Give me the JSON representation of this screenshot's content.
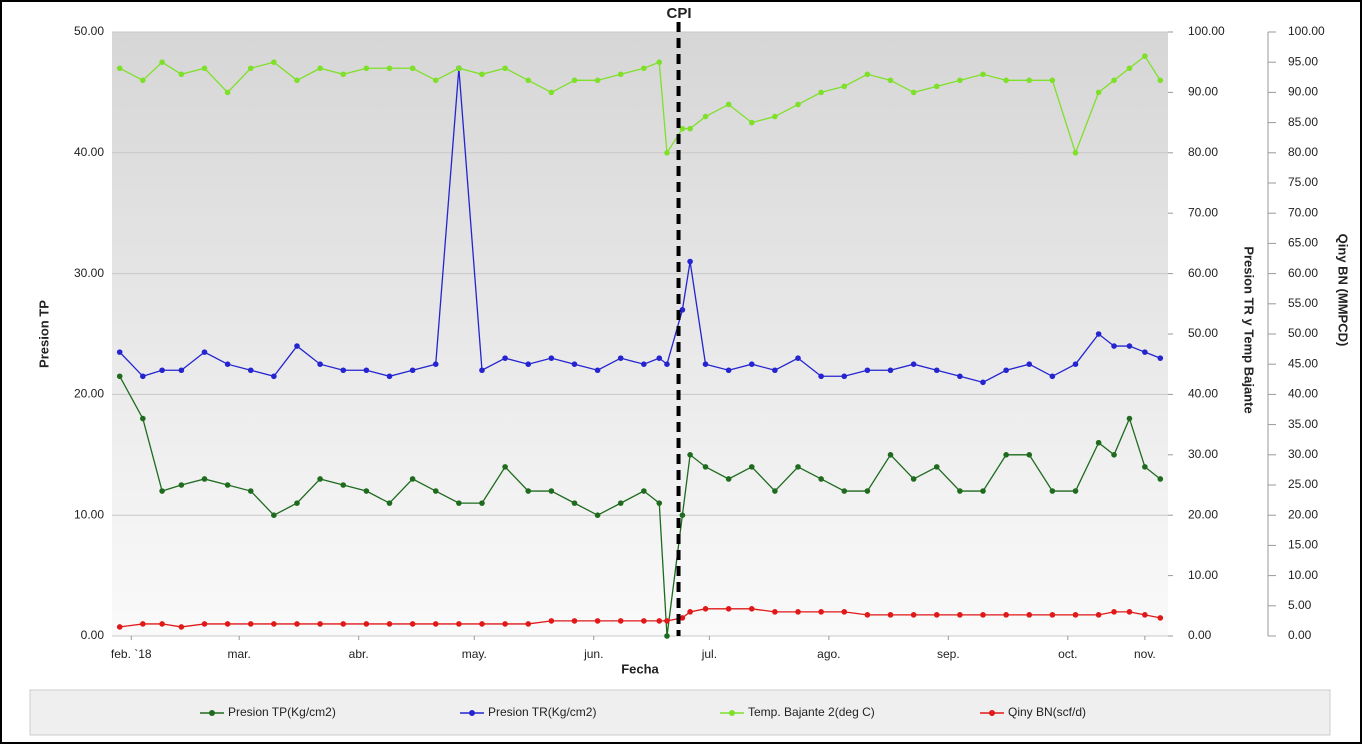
{
  "chart_data": {
    "type": "line",
    "title": "CPI",
    "xlabel": "Fecha",
    "ylabel": "Presion TP",
    "y2label": "Presion TR y Temp Bajante",
    "y3label": "Qiny BN (MMPCD)",
    "annotation_x": 189,
    "x": [
      44,
      50,
      55,
      60,
      66,
      72,
      78,
      84,
      90,
      96,
      102,
      108,
      114,
      120,
      126,
      132,
      138,
      144,
      150,
      156,
      162,
      168,
      174,
      180,
      184,
      186,
      190,
      192,
      196,
      202,
      208,
      214,
      220,
      226,
      232,
      238,
      244,
      250,
      256,
      262,
      268,
      274,
      280,
      286,
      292,
      298,
      302,
      306,
      310,
      314
    ],
    "xlim": [
      42,
      316
    ],
    "xticks": [
      {
        "value": 47,
        "label": "feb. `18"
      },
      {
        "value": 75,
        "label": "mar."
      },
      {
        "value": 106,
        "label": "abr."
      },
      {
        "value": 136,
        "label": "may."
      },
      {
        "value": 167,
        "label": "jun."
      },
      {
        "value": 197,
        "label": "jul."
      },
      {
        "value": 228,
        "label": "ago."
      },
      {
        "value": 259,
        "label": "sep."
      },
      {
        "value": 290,
        "label": "oct."
      },
      {
        "value": 310,
        "label": "nov."
      }
    ],
    "ylim": [
      0,
      50
    ],
    "yticks": [
      {
        "value": 0,
        "label": "0.00"
      },
      {
        "value": 10,
        "label": "10.00"
      },
      {
        "value": 20,
        "label": "20.00"
      },
      {
        "value": 30,
        "label": "30.00"
      },
      {
        "value": 40,
        "label": "40.00"
      },
      {
        "value": 50,
        "label": "50.00"
      }
    ],
    "y2lim": [
      0,
      100
    ],
    "y2ticks": [
      {
        "value": 0,
        "label": "0.00"
      },
      {
        "value": 10,
        "label": "10.00"
      },
      {
        "value": 20,
        "label": "20.00"
      },
      {
        "value": 30,
        "label": "30.00"
      },
      {
        "value": 40,
        "label": "40.00"
      },
      {
        "value": 50,
        "label": "50.00"
      },
      {
        "value": 60,
        "label": "60.00"
      },
      {
        "value": 70,
        "label": "70.00"
      },
      {
        "value": 80,
        "label": "80.00"
      },
      {
        "value": 90,
        "label": "90.00"
      },
      {
        "value": 100,
        "label": "100.00"
      }
    ],
    "y3lim": [
      0,
      100
    ],
    "y3ticks": [
      {
        "value": 0,
        "label": "0.00"
      },
      {
        "value": 5,
        "label": "5.00"
      },
      {
        "value": 10,
        "label": "10.00"
      },
      {
        "value": 15,
        "label": "15.00"
      },
      {
        "value": 20,
        "label": "20.00"
      },
      {
        "value": 25,
        "label": "25.00"
      },
      {
        "value": 30,
        "label": "30.00"
      },
      {
        "value": 35,
        "label": "35.00"
      },
      {
        "value": 40,
        "label": "40.00"
      },
      {
        "value": 45,
        "label": "45.00"
      },
      {
        "value": 50,
        "label": "50.00"
      },
      {
        "value": 55,
        "label": "55.00"
      },
      {
        "value": 60,
        "label": "60.00"
      },
      {
        "value": 65,
        "label": "65.00"
      },
      {
        "value": 70,
        "label": "70.00"
      },
      {
        "value": 75,
        "label": "75.00"
      },
      {
        "value": 80,
        "label": "80.00"
      },
      {
        "value": 85,
        "label": "85.00"
      },
      {
        "value": 90,
        "label": "90.00"
      },
      {
        "value": 95,
        "label": "95.00"
      },
      {
        "value": 100,
        "label": "100.00"
      }
    ],
    "grid": true,
    "legend": "bottom",
    "series": [
      {
        "name": "Presion TP(Kg/cm2)",
        "color": "#1e6b1e",
        "axis": "y",
        "values": [
          21.5,
          18,
          12,
          12.5,
          13,
          12.5,
          12,
          10,
          11,
          13,
          12.5,
          12,
          11,
          13,
          12,
          11,
          11,
          14,
          12,
          12,
          11,
          10,
          11,
          12,
          11,
          0,
          10,
          15,
          14,
          13,
          14,
          12,
          14,
          13,
          12,
          12,
          15,
          13,
          14,
          12,
          12,
          15,
          15,
          12,
          12,
          16,
          15,
          18,
          14,
          13
        ]
      },
      {
        "name": "Presion TR(Kg/cm2)",
        "color": "#2424d0",
        "axis": "y2",
        "values": [
          47,
          43,
          44,
          44,
          47,
          45,
          44,
          43,
          48,
          45,
          44,
          44,
          43,
          44,
          45,
          94,
          44,
          46,
          45,
          46,
          45,
          44,
          46,
          45,
          46,
          45,
          54,
          62,
          45,
          44,
          45,
          44,
          46,
          43,
          43,
          44,
          44,
          45,
          44,
          43,
          42,
          44,
          45,
          43,
          45,
          50,
          48,
          48,
          47,
          46
        ]
      },
      {
        "name": "Temp. Bajante 2(deg C)",
        "color": "#7fe02a",
        "axis": "y2",
        "values": [
          94,
          92,
          95,
          93,
          94,
          90,
          94,
          95,
          92,
          94,
          93,
          94,
          94,
          94,
          92,
          94,
          93,
          94,
          92,
          90,
          92,
          92,
          93,
          94,
          95,
          80,
          84,
          84,
          86,
          88,
          85,
          86,
          88,
          90,
          91,
          93,
          92,
          90,
          91,
          92,
          93,
          92,
          92,
          92,
          80,
          90,
          92,
          94,
          96,
          92
        ]
      },
      {
        "name": "Qiny BN(scf/d)",
        "color": "#e01818",
        "axis": "y3",
        "values": [
          1.5,
          2,
          2,
          1.5,
          2,
          2,
          2,
          2,
          2,
          2,
          2,
          2,
          2,
          2,
          2,
          2,
          2,
          2,
          2,
          2.5,
          2.5,
          2.5,
          2.5,
          2.5,
          2.5,
          2.5,
          3,
          4,
          4.5,
          4.5,
          4.5,
          4,
          4,
          4,
          4,
          3.5,
          3.5,
          3.5,
          3.5,
          3.5,
          3.5,
          3.5,
          3.5,
          3.5,
          3.5,
          3.5,
          4,
          4,
          3.5,
          3
        ]
      }
    ]
  }
}
